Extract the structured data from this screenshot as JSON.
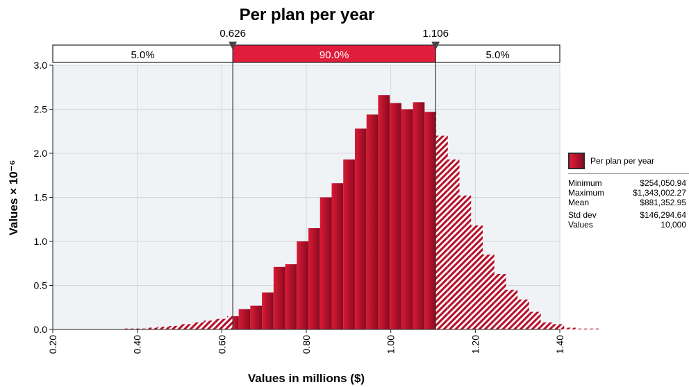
{
  "chart_data": {
    "type": "bar",
    "title": "Per plan per year",
    "xlabel": "Values in millions ($)",
    "ylabel": "Values × 10⁻⁶",
    "xlim": [
      0.2,
      1.4
    ],
    "ylim": [
      0,
      3.0
    ],
    "xticks": [
      "0.20",
      "0.40",
      "0.60",
      "0.80",
      "1.00",
      "1.20",
      "1.40"
    ],
    "yticks": [
      "0.0",
      "0.5",
      "1.0",
      "1.5",
      "2.0",
      "2.5",
      "3.0"
    ],
    "grid": true,
    "bin_width": 0.0275,
    "bin_start": 0.2,
    "values": [
      0,
      0,
      0,
      0,
      0,
      0,
      0.01,
      0.01,
      0.02,
      0.03,
      0.04,
      0.06,
      0.08,
      0.1,
      0.12,
      0.15,
      0.23,
      0.27,
      0.42,
      0.71,
      0.74,
      1.0,
      1.15,
      1.5,
      1.66,
      1.93,
      2.28,
      2.44,
      2.66,
      2.57,
      2.5,
      2.58,
      2.47,
      2.2,
      1.93,
      1.52,
      1.18,
      0.85,
      0.63,
      0.45,
      0.34,
      0.2,
      0.08,
      0.06,
      0.02,
      0.01,
      0.01,
      0,
      0,
      0
    ],
    "markers": [
      {
        "value": 0.626,
        "label": "0.626"
      },
      {
        "value": 1.106,
        "label": "1.106"
      }
    ],
    "bands": [
      {
        "label": "5.0%",
        "highlight": false
      },
      {
        "label": "90.0%",
        "highlight": true
      },
      {
        "label": "5.0%",
        "highlight": false
      }
    ],
    "colors": {
      "bar": "#b5132d",
      "highlight": "#e01e3c",
      "plot_bg": "#f0f3f6"
    }
  },
  "legend": {
    "series_name": "Per plan per year",
    "stats": [
      {
        "label": "Minimum",
        "value": "$254,050.94"
      },
      {
        "label": "Maximum",
        "value": "$1,343,002.27"
      },
      {
        "label": "Mean",
        "value": "$881,352.95"
      },
      {
        "label": "Std dev",
        "value": "$146,294.64"
      },
      {
        "label": "Values",
        "value": "10,000"
      }
    ]
  }
}
